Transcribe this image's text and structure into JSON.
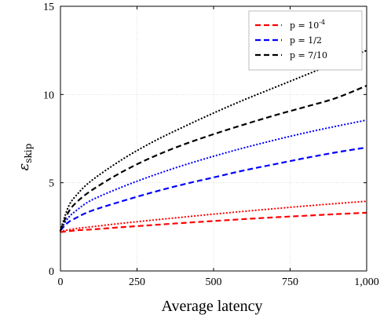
{
  "chart_data": {
    "type": "line",
    "xlabel": "Average latency",
    "ylabel": {
      "main": "ε",
      "sub": "skip"
    },
    "xlim": [
      0,
      1000
    ],
    "ylim": [
      0,
      15
    ],
    "xticks": [
      0,
      250,
      500,
      750,
      1000
    ],
    "xtick_labels": [
      "0",
      "250",
      "500",
      "750",
      "1,000"
    ],
    "yticks": [
      0,
      5,
      10,
      15
    ],
    "ytick_labels": [
      "0",
      "5",
      "10",
      "15"
    ],
    "grid": true,
    "legend_position": "top-right",
    "legend": [
      {
        "label": "p = 10^-4",
        "color": "#ff0000"
      },
      {
        "label": "p = 1/2",
        "color": "#0000ff"
      },
      {
        "label": "p = 7/10",
        "color": "#000000"
      }
    ],
    "series": [
      {
        "legend_index": 0,
        "color": "#ff0000",
        "style": "dashed",
        "x": [
          0,
          50,
          100,
          200,
          300,
          400,
          500,
          600,
          700,
          800,
          900,
          1000
        ],
        "y": [
          2.2,
          2.3,
          2.35,
          2.48,
          2.6,
          2.72,
          2.83,
          2.94,
          3.04,
          3.13,
          3.22,
          3.3
        ]
      },
      {
        "legend_index": 0,
        "color": "#ff0000",
        "style": "dotted",
        "x": [
          0,
          50,
          100,
          200,
          300,
          400,
          500,
          600,
          700,
          800,
          900,
          1000
        ],
        "y": [
          2.25,
          2.4,
          2.5,
          2.7,
          2.88,
          3.05,
          3.22,
          3.38,
          3.53,
          3.68,
          3.82,
          3.95
        ]
      },
      {
        "legend_index": 1,
        "color": "#0000ff",
        "style": "dashed",
        "x": [
          0,
          25,
          50,
          100,
          200,
          300,
          400,
          500,
          600,
          700,
          800,
          900,
          1000
        ],
        "y": [
          2.3,
          2.75,
          3.0,
          3.4,
          3.95,
          4.45,
          4.9,
          5.3,
          5.7,
          6.05,
          6.4,
          6.72,
          7.0
        ]
      },
      {
        "legend_index": 1,
        "color": "#0000ff",
        "style": "dotted",
        "x": [
          0,
          25,
          50,
          100,
          200,
          300,
          400,
          500,
          600,
          700,
          800,
          900,
          1000
        ],
        "y": [
          2.3,
          3.0,
          3.4,
          4.0,
          4.75,
          5.4,
          5.98,
          6.5,
          6.98,
          7.42,
          7.83,
          8.2,
          8.55
        ]
      },
      {
        "legend_index": 2,
        "color": "#000000",
        "style": "dashed",
        "x": [
          0,
          25,
          50,
          100,
          200,
          300,
          400,
          500,
          600,
          700,
          800,
          900,
          1000
        ],
        "y": [
          2.3,
          3.3,
          3.85,
          4.55,
          5.6,
          6.45,
          7.15,
          7.75,
          8.3,
          8.82,
          9.3,
          9.8,
          10.5
        ]
      },
      {
        "legend_index": 2,
        "color": "#000000",
        "style": "dotted",
        "x": [
          0,
          25,
          50,
          100,
          200,
          300,
          400,
          500,
          600,
          700,
          800,
          900,
          1000
        ],
        "y": [
          2.3,
          3.6,
          4.25,
          5.1,
          6.3,
          7.3,
          8.15,
          8.95,
          9.7,
          10.4,
          11.1,
          11.8,
          12.5
        ]
      }
    ]
  }
}
